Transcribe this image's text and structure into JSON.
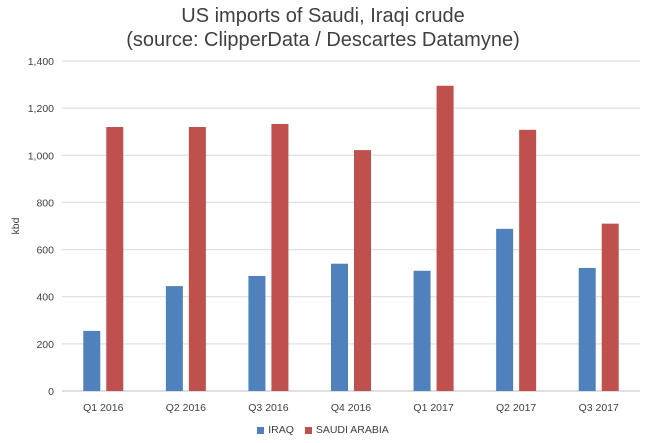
{
  "chart_data": {
    "type": "bar",
    "title": "US imports of Saudi, Iraqi crude",
    "subtitle": "(source: ClipperData / Descartes Datamyne)",
    "ylabel": "kbd",
    "xlabel": "",
    "ylim": [
      0,
      1400
    ],
    "yticks": [
      "0",
      "200",
      "400",
      "600",
      "800",
      "1,000",
      "1,200",
      "1,400"
    ],
    "grid": true,
    "legend": "bottom",
    "categories": [
      "Q1 2016",
      "Q2 2016",
      "Q3 2016",
      "Q4 2016",
      "Q1 2017",
      "Q2 2017",
      "Q3 2017"
    ],
    "series": [
      {
        "name": "IRAQ",
        "color": "#4F81BD",
        "values": [
          255,
          445,
          488,
          540,
          510,
          688,
          522
        ]
      },
      {
        "name": "SAUDI ARABIA",
        "color": "#C0504D",
        "values": [
          1120,
          1120,
          1133,
          1022,
          1295,
          1108,
          710
        ]
      }
    ]
  }
}
